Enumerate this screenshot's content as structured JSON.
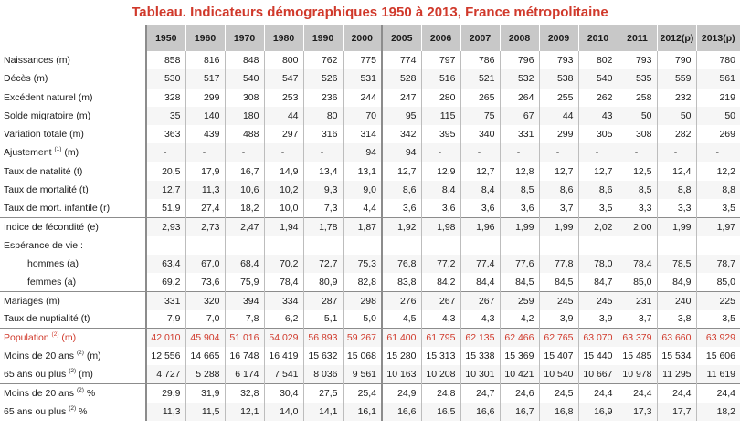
{
  "title": "Tableau. Indicateurs démographiques 1950 à 2013, France métropolitaine",
  "columns": [
    "1950",
    "1960",
    "1970",
    "1980",
    "1990",
    "2000",
    "2005",
    "2006",
    "2007",
    "2008",
    "2009",
    "2010",
    "2011",
    "2012(p)",
    "2013(p)"
  ],
  "rows": [
    {
      "label": "Naissances (m)",
      "values": [
        "858",
        "816",
        "848",
        "800",
        "762",
        "775",
        "774",
        "797",
        "786",
        "796",
        "793",
        "802",
        "793",
        "790",
        "780"
      ]
    },
    {
      "label": "Décès (m)",
      "values": [
        "530",
        "517",
        "540",
        "547",
        "526",
        "531",
        "528",
        "516",
        "521",
        "532",
        "538",
        "540",
        "535",
        "559",
        "561"
      ]
    },
    {
      "label": "Excédent naturel (m)",
      "values": [
        "328",
        "299",
        "308",
        "253",
        "236",
        "244",
        "247",
        "280",
        "265",
        "264",
        "255",
        "262",
        "258",
        "232",
        "219"
      ]
    },
    {
      "label": "Solde migratoire (m)",
      "values": [
        "35",
        "140",
        "180",
        "44",
        "80",
        "70",
        "95",
        "115",
        "75",
        "67",
        "44",
        "43",
        "50",
        "50",
        "50"
      ]
    },
    {
      "label": "Variation totale (m)",
      "values": [
        "363",
        "439",
        "488",
        "297",
        "316",
        "314",
        "342",
        "395",
        "340",
        "331",
        "299",
        "305",
        "308",
        "282",
        "269"
      ]
    },
    {
      "label": "Ajustement",
      "sup": "(1)",
      "suffix": " (m)",
      "values": [
        "-",
        "-",
        "-",
        "-",
        "-",
        "94",
        "94",
        "-",
        "-",
        "-",
        "-",
        "-",
        "-",
        "-",
        "-"
      ]
    },
    {
      "label": "Taux de natalité (t)",
      "group": true,
      "values": [
        "20,5",
        "17,9",
        "16,7",
        "14,9",
        "13,4",
        "13,1",
        "12,7",
        "12,9",
        "12,7",
        "12,8",
        "12,7",
        "12,7",
        "12,5",
        "12,4",
        "12,2"
      ]
    },
    {
      "label": "Taux de mortalité (t)",
      "values": [
        "12,7",
        "11,3",
        "10,6",
        "10,2",
        "9,3",
        "9,0",
        "8,6",
        "8,4",
        "8,4",
        "8,5",
        "8,6",
        "8,6",
        "8,5",
        "8,8",
        "8,8"
      ]
    },
    {
      "label": "Taux de mort. infantile (r)",
      "values": [
        "51,9",
        "27,4",
        "18,2",
        "10,0",
        "7,3",
        "4,4",
        "3,6",
        "3,6",
        "3,6",
        "3,6",
        "3,7",
        "3,5",
        "3,3",
        "3,3",
        "3,5"
      ]
    },
    {
      "label": "Indice de fécondité (e)",
      "group": true,
      "values": [
        "2,93",
        "2,73",
        "2,47",
        "1,94",
        "1,78",
        "1,87",
        "1,92",
        "1,98",
        "1,96",
        "1,99",
        "1,99",
        "2,02",
        "2,00",
        "1,99",
        "1,97"
      ]
    },
    {
      "label": "Espérance de vie :",
      "values": [
        "",
        "",
        "",
        "",
        "",
        "",
        "",
        "",
        "",
        "",
        "",
        "",
        "",
        "",
        ""
      ]
    },
    {
      "label": "hommes (a)",
      "indent": true,
      "values": [
        "63,4",
        "67,0",
        "68,4",
        "70,2",
        "72,7",
        "75,3",
        "76,8",
        "77,2",
        "77,4",
        "77,6",
        "77,8",
        "78,0",
        "78,4",
        "78,5",
        "78,7"
      ]
    },
    {
      "label": "femmes (a)",
      "indent": true,
      "values": [
        "69,2",
        "73,6",
        "75,9",
        "78,4",
        "80,9",
        "82,8",
        "83,8",
        "84,2",
        "84,4",
        "84,5",
        "84,5",
        "84,7",
        "85,0",
        "84,9",
        "85,0"
      ]
    },
    {
      "label": "Mariages (m)",
      "group": true,
      "values": [
        "331",
        "320",
        "394",
        "334",
        "287",
        "298",
        "276",
        "267",
        "267",
        "259",
        "245",
        "245",
        "231",
        "240",
        "225"
      ]
    },
    {
      "label": "Taux de nuptialité (t)",
      "values": [
        "7,9",
        "7,0",
        "7,8",
        "6,2",
        "5,1",
        "5,0",
        "4,5",
        "4,3",
        "4,3",
        "4,2",
        "3,9",
        "3,9",
        "3,7",
        "3,8",
        "3,5"
      ]
    },
    {
      "label": "Population",
      "sup": "(2)",
      "suffix": " (m)",
      "group": true,
      "pop": true,
      "values": [
        "42 010",
        "45 904",
        "51 016",
        "54 029",
        "56 893",
        "59 267",
        "61 400",
        "61 795",
        "62 135",
        "62 466",
        "62 765",
        "63 070",
        "63 379",
        "63 660",
        "63 929"
      ]
    },
    {
      "label": "Moins de 20 ans",
      "sup": "(2)",
      "suffix": " (m)",
      "values": [
        "12 556",
        "14 665",
        "16 748",
        "16 419",
        "15 632",
        "15 068",
        "15 280",
        "15 313",
        "15 338",
        "15 369",
        "15 407",
        "15 440",
        "15 485",
        "15 534",
        "15 606"
      ]
    },
    {
      "label": "65 ans ou plus",
      "sup": "(2)",
      "suffix": " (m)",
      "values": [
        "4 727",
        "5 288",
        "6 174",
        "7 541",
        "8 036",
        "9 561",
        "10 163",
        "10 208",
        "10 301",
        "10 421",
        "10 540",
        "10 667",
        "10 978",
        "11 295",
        "11 619"
      ]
    },
    {
      "label": "Moins de 20 ans",
      "sup": "(2)",
      "suffix": " %",
      "group": true,
      "values": [
        "29,9",
        "31,9",
        "32,8",
        "30,4",
        "27,5",
        "25,4",
        "24,9",
        "24,8",
        "24,7",
        "24,6",
        "24,5",
        "24,4",
        "24,4",
        "24,4",
        "24,4"
      ]
    },
    {
      "label": "65 ans ou plus",
      "sup": "(2)",
      "suffix": " %",
      "values": [
        "11,3",
        "11,5",
        "12,1",
        "14,0",
        "14,1",
        "16,1",
        "16,6",
        "16,5",
        "16,6",
        "16,7",
        "16,8",
        "16,9",
        "17,3",
        "17,7",
        "18,2"
      ]
    }
  ]
}
